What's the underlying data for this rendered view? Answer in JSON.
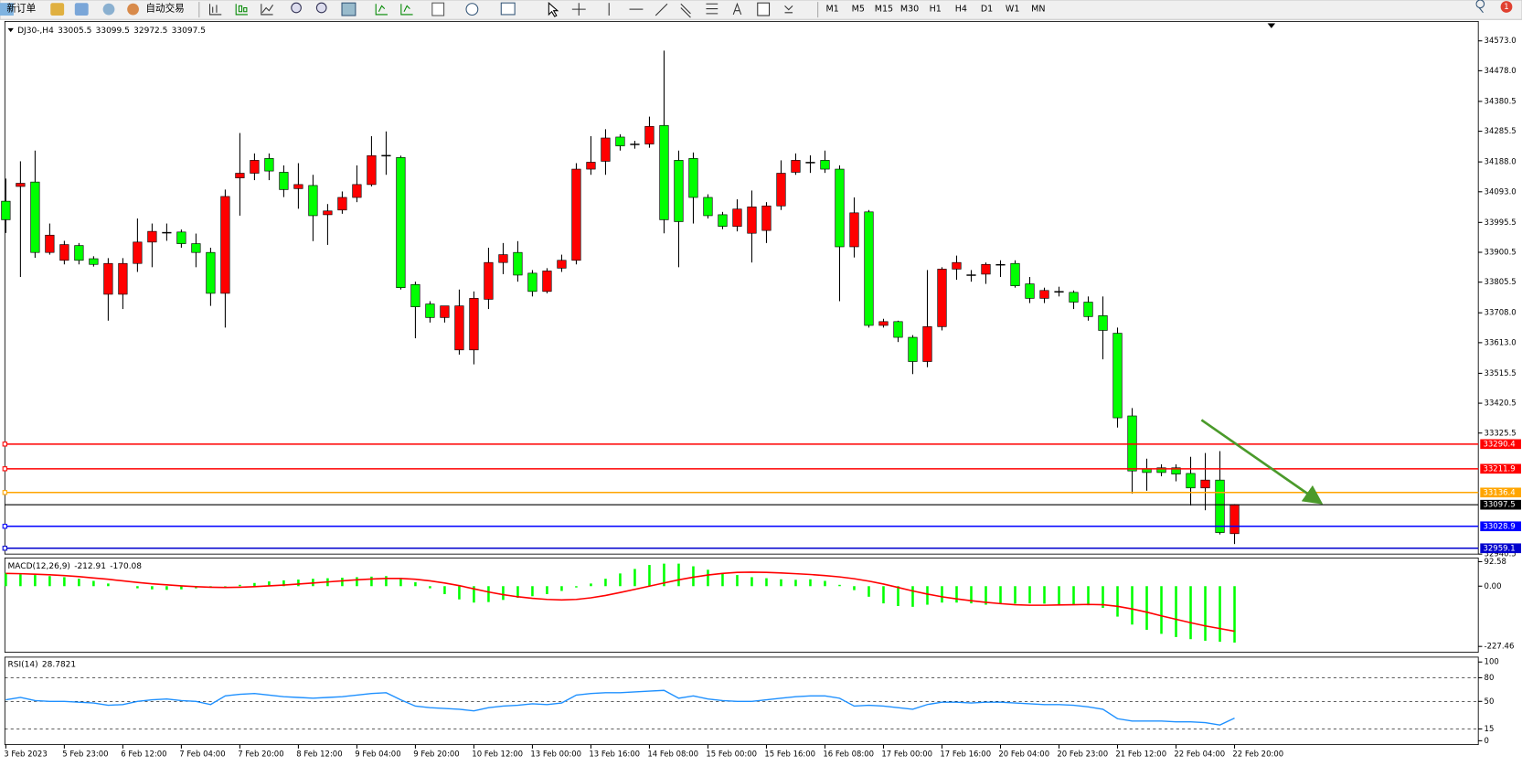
{
  "toolbar": {
    "new_order": "新订单",
    "auto_trading": "自动交易",
    "timeframes": [
      "M1",
      "M5",
      "M15",
      "M30",
      "H1",
      "H4",
      "D1",
      "W1",
      "MN"
    ],
    "badge": "1"
  },
  "chart_data": [
    {
      "type": "candlestick",
      "symbol": "DJ30-,H4",
      "categories": [
        "3 Feb 2023",
        null,
        null,
        null,
        "5 Feb 23:00",
        null,
        null,
        null,
        "6 Feb 12:00",
        null,
        null,
        null,
        "7 Feb 04:00",
        null,
        null,
        null,
        "7 Feb 20:00",
        null,
        null,
        null,
        "8 Feb 12:00",
        null,
        null,
        null,
        "9 Feb 04:00",
        null,
        null,
        null,
        "9 Feb 20:00",
        null,
        null,
        null,
        "10 Feb 12:00",
        null,
        null,
        null,
        "13 Feb 00:00",
        null,
        null,
        null,
        "13 Feb 16:00",
        null,
        null,
        null,
        "14 Feb 08:00",
        null,
        null,
        null,
        "15 Feb 00:00",
        null,
        null,
        null,
        "15 Feb 16:00",
        null,
        null,
        null,
        "16 Feb 08:00",
        null,
        null,
        null,
        "17 Feb 00:00",
        null,
        null,
        null,
        "17 Feb 16:00",
        null,
        null,
        null,
        "20 Feb 04:00",
        null,
        null,
        null,
        "20 Feb 23:00",
        null,
        null,
        null,
        "21 Feb 12:00",
        null,
        null,
        null,
        "22 Feb 04:00",
        null,
        null,
        null,
        "22 Feb 20:00"
      ],
      "open": [
        34063,
        34110,
        34124,
        33900,
        33875,
        33922,
        33880,
        33767,
        33767,
        33865,
        33933,
        33964,
        33965,
        33928,
        33900,
        33770,
        34137,
        34152,
        34199,
        34155,
        34103,
        34113,
        34020,
        34035,
        34075,
        34116,
        34209,
        34202,
        33798,
        33736,
        33693,
        33590,
        33590,
        33751,
        33868,
        33900,
        33834,
        33776,
        33850,
        33875,
        34165,
        34190,
        34267,
        34245,
        34245,
        34304,
        34193,
        34199,
        34075,
        34020,
        33983,
        33961,
        33970,
        34048,
        34155,
        34187,
        34193,
        34165,
        33918,
        34029,
        33668,
        33680,
        33630,
        33553,
        33664,
        33847,
        33829,
        33831,
        33862,
        33865,
        33800,
        33754,
        33776,
        33773,
        33742,
        33699,
        33643,
        33380,
        33212,
        33215,
        33215,
        33197,
        33151,
        33176,
        33005.5
      ],
      "high": [
        34135,
        34190,
        34224,
        33992,
        33937,
        33930,
        33888,
        33882,
        33882,
        34008,
        33992,
        33992,
        33973,
        33960,
        33915,
        34100,
        34280,
        34215,
        34215,
        34177,
        34184,
        34147,
        34054,
        34094,
        34177,
        34270,
        34285,
        34208,
        33807,
        33745,
        33730,
        33782,
        33776,
        33915,
        33930,
        33936,
        33844,
        33850,
        33893,
        34184,
        34270,
        34292,
        34276,
        34255,
        34332,
        34542,
        34224,
        34218,
        34085,
        34029,
        34069,
        34097,
        34060,
        34193,
        34215,
        34209,
        34224,
        34177,
        34075,
        34035,
        33689,
        33683,
        33637,
        33844,
        33853,
        33890,
        33844,
        33868,
        33875,
        33875,
        33822,
        33788,
        33791,
        33779,
        33760,
        33760,
        33661,
        33405,
        33244,
        33226,
        33226,
        33250,
        33262,
        33268,
        33099.5
      ],
      "low": [
        33962,
        33822,
        33883,
        33893,
        33862,
        33862,
        33855,
        33683,
        33720,
        33838,
        33853,
        33937,
        33915,
        33853,
        33730,
        33661,
        34017,
        34130,
        34130,
        34076,
        34039,
        33936,
        33924,
        34023,
        34060,
        34110,
        34147,
        33782,
        33627,
        33677,
        33677,
        33575,
        33544,
        33720,
        33831,
        33807,
        33760,
        33770,
        33838,
        33862,
        34147,
        34147,
        34224,
        34230,
        34233,
        33961,
        33853,
        33992,
        34008,
        33974,
        33967,
        33868,
        33930,
        34035,
        34147,
        34153,
        34153,
        33745,
        33884,
        33661,
        33661,
        33615,
        33513,
        33535,
        33652,
        33813,
        33807,
        33800,
        33822,
        33788,
        33739,
        33739,
        33760,
        33720,
        33683,
        33560,
        33343,
        33133,
        33142,
        33188,
        33172,
        33095,
        33080,
        33003,
        32972.5
      ],
      "close": [
        34004,
        34120,
        33900,
        33955,
        33925,
        33875,
        33862,
        33865,
        33865,
        33933,
        33967,
        33964,
        33928,
        33900,
        33770,
        34078,
        34152,
        34193,
        34159,
        34100,
        34116,
        34017,
        34032,
        34075,
        34116,
        34208,
        34209,
        33788,
        33727,
        33693,
        33730,
        33730,
        33754,
        33868,
        33893,
        33828,
        33776,
        33841,
        33875,
        34165,
        34187,
        34264,
        34239,
        34245,
        34301,
        34004,
        33998,
        34075,
        34017,
        33983,
        34038,
        34045,
        34048,
        34152,
        34193,
        34187,
        34165,
        33918,
        34026,
        33668,
        33680,
        33630,
        33553,
        33664,
        33847,
        33868,
        33829,
        33862,
        33862,
        33794,
        33754,
        33779,
        33776,
        33742,
        33696,
        33652,
        33374,
        33205,
        33200,
        33200,
        33195,
        33151,
        33176,
        33009,
        33097.5
      ],
      "up_color": "#ff0000",
      "down_color": "#00ff00",
      "doji_color": "#000000",
      "ylim": [
        32940.5,
        34635
      ],
      "yticks": [
        {
          "value": 34573,
          "label": "34573.0"
        },
        {
          "value": 34478,
          "label": "34478.0"
        },
        34380.5,
        34285.5,
        {
          "value": 34188,
          "label": "34188.0"
        },
        {
          "value": 34093,
          "label": "34093.0"
        },
        33995.5,
        33900.5,
        33805.5,
        {
          "value": 33708,
          "label": "33708.0"
        },
        {
          "value": 33613,
          "label": "33613.0"
        },
        33515.5,
        33420.5,
        33325.5,
        32940.5
      ],
      "levels": [
        {
          "value": 33290.4,
          "color": "#ff0000"
        },
        {
          "value": 33211.9,
          "color": "#ff0000"
        },
        {
          "value": 33136.4,
          "color": "#ffa500"
        },
        {
          "value": 33028.9,
          "color": "#0000ff"
        },
        {
          "value": 32959.1,
          "color": "#0000cd"
        }
      ],
      "bid_line": {
        "value": 33097.5,
        "color": "#000000"
      }
    },
    {
      "type": "macd",
      "name": "MACD(12,26,9)",
      "histogram": [
        50,
        45,
        42,
        38,
        34,
        28,
        20,
        10,
        0,
        -8,
        -12,
        -14,
        -12,
        -8,
        -4,
        -2,
        5,
        12,
        18,
        22,
        25,
        28,
        30,
        32,
        34,
        36,
        38,
        32,
        15,
        -8,
        -30,
        -50,
        -62,
        -60,
        -52,
        -44,
        -38,
        -30,
        -18,
        -5,
        10,
        28,
        48,
        65,
        80,
        85,
        85,
        75,
        62,
        50,
        42,
        34,
        30,
        26,
        24,
        26,
        20,
        5,
        -15,
        -40,
        -65,
        -75,
        -78,
        -70,
        -62,
        -62,
        -65,
        -70,
        -68,
        -66,
        -65,
        -66,
        -68,
        -70,
        -72,
        -82,
        -115,
        -145,
        -165,
        -180,
        -192,
        -200,
        -206,
        -210,
        -212.91
      ],
      "signal": [
        48,
        47,
        45,
        43,
        40,
        36,
        31,
        26,
        20,
        14,
        9,
        5,
        1,
        -2,
        -4,
        -5,
        -4,
        -2,
        1,
        4,
        8,
        12,
        16,
        20,
        24,
        27,
        29,
        29,
        26,
        20,
        12,
        2,
        -10,
        -22,
        -32,
        -40,
        -46,
        -50,
        -52,
        -50,
        -44,
        -35,
        -24,
        -12,
        0,
        12,
        24,
        34,
        42,
        48,
        52,
        53,
        52,
        50,
        47,
        44,
        40,
        35,
        28,
        19,
        8,
        -5,
        -18,
        -30,
        -40,
        -48,
        -55,
        -61,
        -66,
        -70,
        -72,
        -72,
        -71,
        -70,
        -69,
        -70,
        -76,
        -86,
        -98,
        -112,
        -125,
        -138,
        -150,
        -160,
        -170.08
      ],
      "hist_color": "#00ff00",
      "signal_color": "#ff0000",
      "ylim": [
        -249.5,
        106.4
      ],
      "yticks": [
        92.58,
        {
          "value": 0,
          "label": "0.00"
        },
        -227.46
      ]
    },
    {
      "type": "line",
      "name": "RSI(14)",
      "values": [
        52,
        55,
        51,
        50,
        50,
        49,
        48,
        45,
        46,
        50,
        52,
        53,
        51,
        50,
        46,
        57,
        59,
        60,
        58,
        56,
        55,
        54,
        55,
        56,
        58,
        60,
        61,
        52,
        44,
        42,
        41,
        40,
        38,
        42,
        44,
        45,
        47,
        46,
        48,
        58,
        60,
        61,
        61,
        62,
        63,
        64,
        54,
        57,
        53,
        51,
        50,
        50,
        52,
        54,
        56,
        57,
        57,
        54,
        44,
        45,
        44,
        42,
        40,
        46,
        49,
        49,
        48,
        49,
        49,
        48,
        47,
        46,
        46,
        45,
        43,
        40,
        28,
        25,
        25,
        25,
        24,
        24,
        23,
        20,
        28.7821
      ],
      "color": "#1e90ff",
      "ylim": [
        -4.9,
        106.2
      ],
      "yticks": [
        100,
        80,
        50,
        15,
        0
      ],
      "levels": [
        80,
        50,
        15
      ]
    }
  ]
}
